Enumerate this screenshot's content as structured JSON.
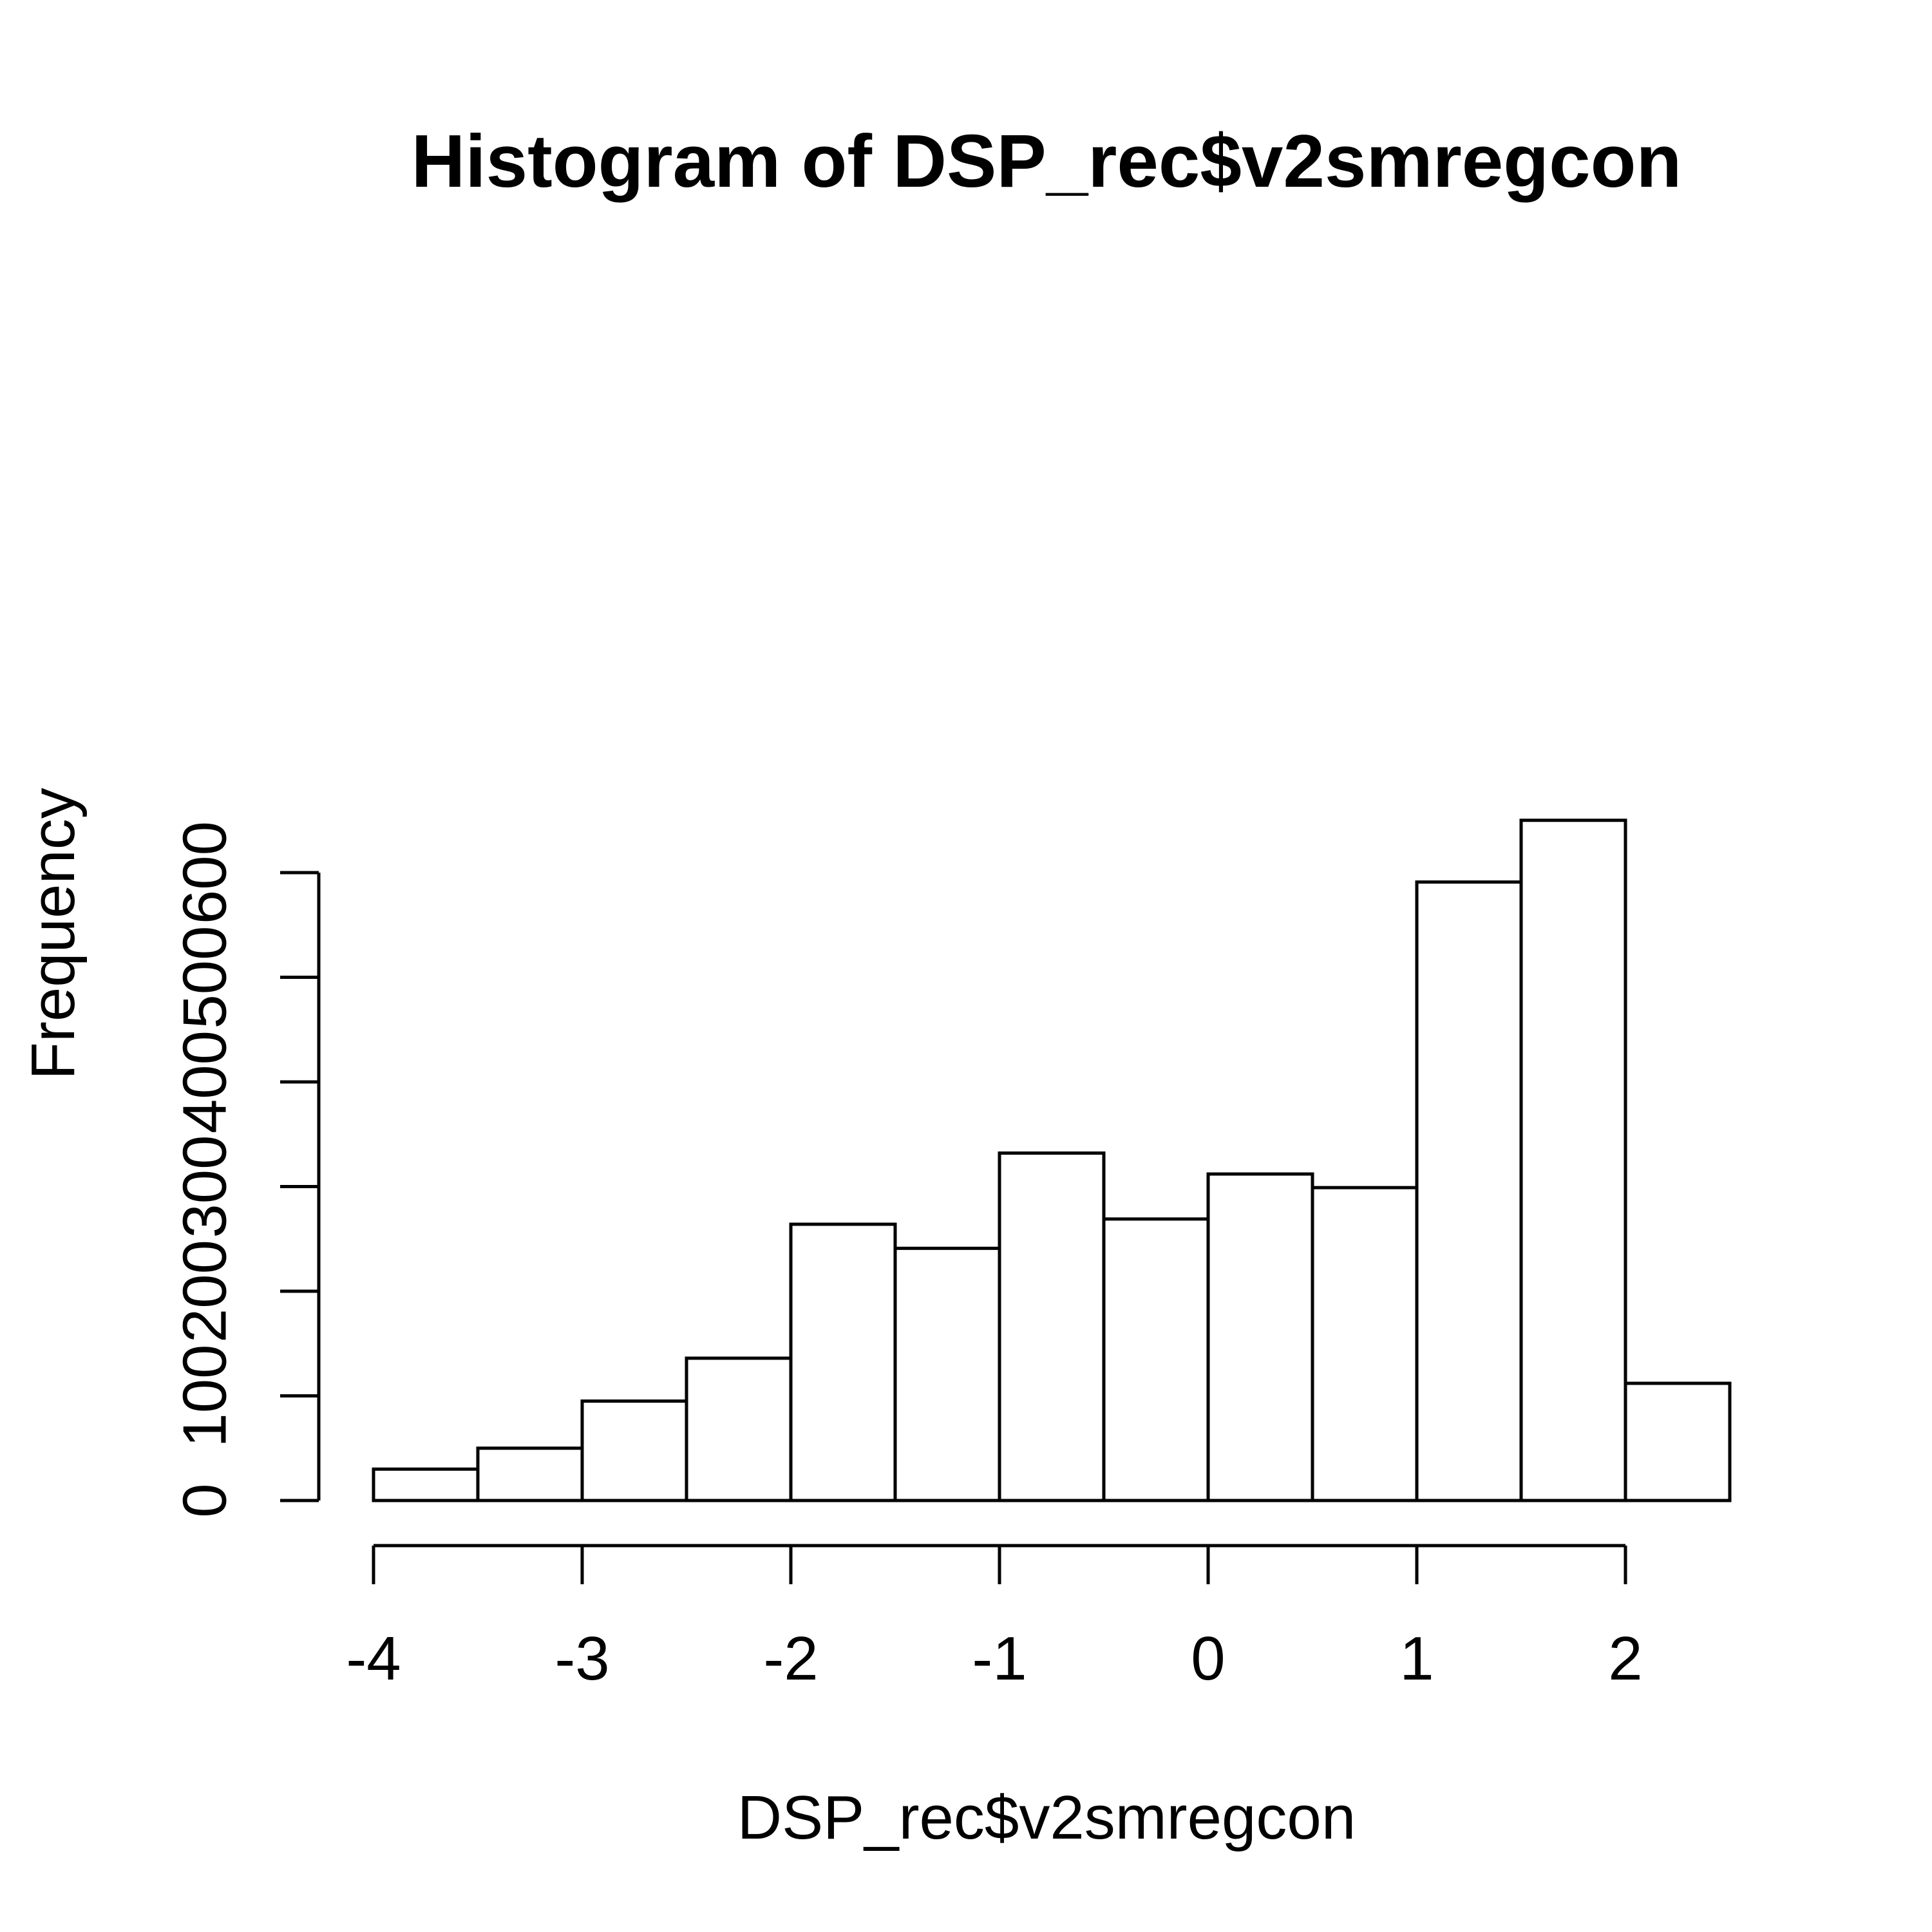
{
  "chart_data": {
    "type": "bar",
    "title": "Histogram of DSP_rec$v2smregcon",
    "xlabel": "DSP_rec$v2smregcon",
    "ylabel": "Frequency",
    "bin_width": 0.5,
    "bins": [
      {
        "start": -4.0,
        "end": -3.5,
        "count": 30
      },
      {
        "start": -3.5,
        "end": -3.0,
        "count": 50
      },
      {
        "start": -3.0,
        "end": -2.5,
        "count": 95
      },
      {
        "start": -2.5,
        "end": -2.0,
        "count": 136
      },
      {
        "start": -2.0,
        "end": -1.5,
        "count": 264
      },
      {
        "start": -1.5,
        "end": -1.0,
        "count": 241
      },
      {
        "start": -1.0,
        "end": -0.5,
        "count": 332
      },
      {
        "start": -0.5,
        "end": 0.0,
        "count": 269
      },
      {
        "start": 0.0,
        "end": 0.5,
        "count": 312
      },
      {
        "start": 0.5,
        "end": 1.0,
        "count": 299
      },
      {
        "start": 1.0,
        "end": 1.5,
        "count": 591
      },
      {
        "start": 1.5,
        "end": 2.0,
        "count": 650
      },
      {
        "start": 2.0,
        "end": 2.5,
        "count": 112
      }
    ],
    "x_ticks": [
      -4,
      -3,
      -2,
      -1,
      0,
      1,
      2
    ],
    "x_tick_labels": [
      "-4",
      "-3",
      "-2",
      "-1",
      "0",
      "1",
      "2"
    ],
    "y_ticks": [
      0,
      100,
      200,
      300,
      400,
      500,
      600
    ],
    "y_tick_labels": [
      "0",
      "100",
      "200",
      "300",
      "400",
      "500",
      "600"
    ],
    "xlim": [
      -4,
      2.5
    ],
    "ylim": [
      0,
      650
    ],
    "grid": false,
    "legend": "none",
    "colors": {
      "bar_fill": "#ffffff",
      "bar_stroke": "#000000",
      "axis": "#000000",
      "background": "#ffffff"
    }
  }
}
